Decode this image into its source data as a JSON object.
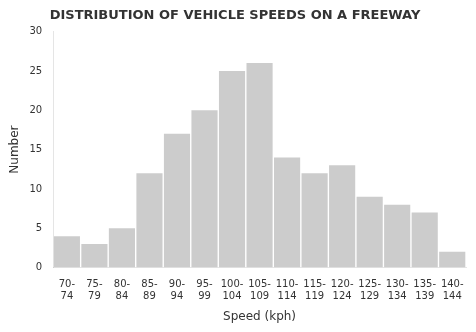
{
  "chart_data": {
    "type": "bar",
    "title": "DISTRIBUTION OF VEHICLE SPEEDS ON A FREEWAY",
    "xlabel": "Speed (kph)",
    "ylabel": "Number",
    "categories": [
      "70-\n74",
      "75-\n79",
      "80-\n84",
      "85-\n89",
      "90-\n94",
      "95-\n99",
      "100-\n104",
      "105-\n109",
      "110-\n114",
      "115-\n119",
      "120-\n124",
      "125-\n129",
      "130-\n134",
      "135-\n139",
      "140-\n144"
    ],
    "values": [
      4,
      3,
      5,
      12,
      17,
      20,
      25,
      26,
      14,
      12,
      13,
      9,
      8,
      7,
      2
    ],
    "color": "#cccccc",
    "ylim": [
      0,
      30
    ],
    "yticks": [
      0,
      5,
      10,
      15,
      20,
      25,
      30
    ],
    "grid": false
  }
}
